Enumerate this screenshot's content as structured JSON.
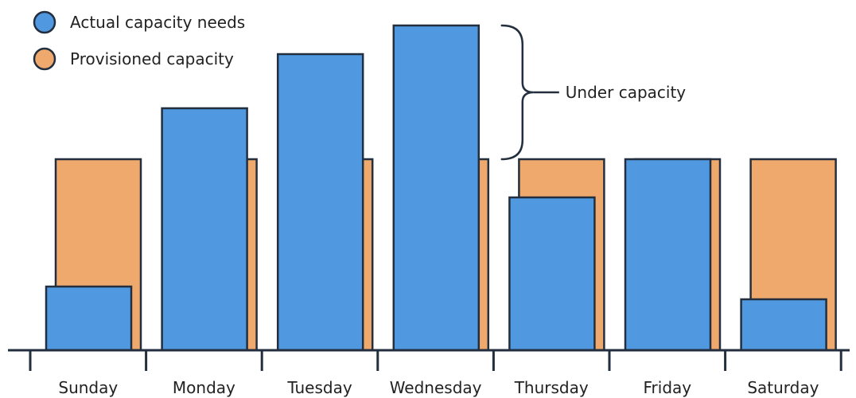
{
  "chart_data": {
    "type": "bar",
    "categories": [
      "Sunday",
      "Monday",
      "Tuesday",
      "Wednesday",
      "Thursday",
      "Friday",
      "Saturday"
    ],
    "series": [
      {
        "name": "Provisioned capacity",
        "color": "#F0A96C",
        "values": [
          60,
          60,
          60,
          60,
          60,
          60,
          60
        ]
      },
      {
        "name": "Actual capacity needs",
        "color": "#5099E0",
        "values": [
          20,
          76,
          93,
          102,
          48,
          60,
          16
        ]
      }
    ],
    "annotation": {
      "text": "Under capacity",
      "category": "Wednesday"
    },
    "ylim": [
      0,
      110
    ],
    "grid": false,
    "legend": "top-left",
    "outline_color": "#232F3E"
  }
}
